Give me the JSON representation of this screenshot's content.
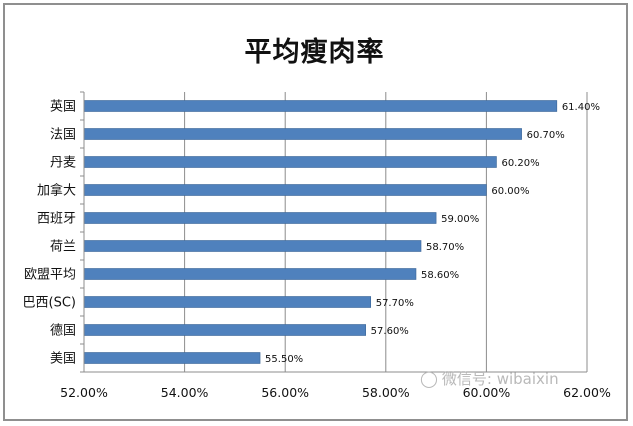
{
  "chart_data": {
    "type": "bar",
    "orientation": "horizontal",
    "title": "平均瘦肉率",
    "categories": [
      "英国",
      "法国",
      "丹麦",
      "加拿大",
      "西班牙",
      "荷兰",
      "欧盟平均",
      "巴西(SC)",
      "德国",
      "美国"
    ],
    "values": [
      61.4,
      60.7,
      60.2,
      60.0,
      59.0,
      58.7,
      58.6,
      57.7,
      57.6,
      55.5
    ],
    "value_labels": [
      "61.40%",
      "60.70%",
      "60.20%",
      "60.00%",
      "59.00%",
      "58.70%",
      "58.60%",
      "57.70%",
      "57.60%",
      "55.50%"
    ],
    "xlim": [
      52,
      62
    ],
    "x_ticks": [
      52,
      54,
      56,
      58,
      60,
      62
    ],
    "x_tick_labels": [
      "52.00%",
      "54.00%",
      "56.00%",
      "58.00%",
      "60.00%",
      "62.00%"
    ],
    "grid": "vertical",
    "bar_color": "#4f81bd"
  },
  "watermark": {
    "text": "微信号: wibaixin",
    "icon": "wechat-icon"
  }
}
